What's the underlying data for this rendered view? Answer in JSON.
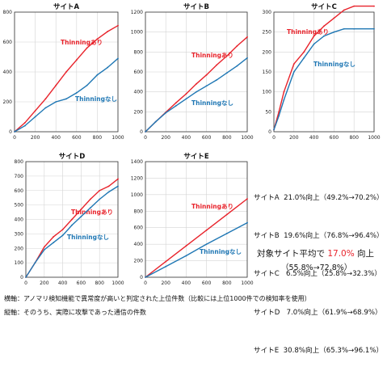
{
  "chart_data": [
    {
      "type": "line",
      "title": "サイトA",
      "xlim": [
        0,
        1000
      ],
      "ylim": [
        0,
        800
      ],
      "xticks": [
        0,
        200,
        400,
        600,
        800,
        1000
      ],
      "yticks": [
        0,
        200,
        400,
        600,
        800
      ],
      "grid": true,
      "series": [
        {
          "name": "Thinningあり",
          "color": "#e8232b",
          "x": [
            0,
            100,
            200,
            300,
            400,
            500,
            600,
            700,
            800,
            900,
            1000
          ],
          "y": [
            0,
            60,
            140,
            220,
            310,
            400,
            480,
            560,
            620,
            670,
            710
          ]
        },
        {
          "name": "Thinningなし",
          "color": "#1f77b4",
          "x": [
            0,
            100,
            200,
            300,
            400,
            500,
            600,
            700,
            800,
            900,
            1000
          ],
          "y": [
            0,
            40,
            100,
            160,
            200,
            220,
            260,
            310,
            380,
            430,
            490
          ]
        }
      ]
    },
    {
      "type": "line",
      "title": "サイトB",
      "xlim": [
        0,
        1000
      ],
      "ylim": [
        0,
        1200
      ],
      "xticks": [
        0,
        200,
        400,
        600,
        800,
        1000
      ],
      "yticks": [
        0,
        200,
        400,
        600,
        800,
        1000,
        1200
      ],
      "grid": true,
      "series": [
        {
          "name": "Thinningあり",
          "color": "#e8232b",
          "x": [
            0,
            100,
            200,
            300,
            400,
            500,
            600,
            700,
            800,
            900,
            1000
          ],
          "y": [
            0,
            100,
            195,
            290,
            380,
            480,
            570,
            670,
            760,
            860,
            950
          ]
        },
        {
          "name": "Thinningなし",
          "color": "#1f77b4",
          "x": [
            0,
            100,
            200,
            300,
            400,
            500,
            600,
            700,
            800,
            900,
            1000
          ],
          "y": [
            0,
            100,
            190,
            260,
            330,
            400,
            460,
            520,
            590,
            660,
            740
          ]
        }
      ]
    },
    {
      "type": "line",
      "title": "サイトC",
      "xlim": [
        0,
        1000
      ],
      "ylim": [
        0,
        300
      ],
      "xticks": [
        0,
        200,
        400,
        600,
        800,
        1000
      ],
      "yticks": [
        0,
        50,
        100,
        150,
        200,
        250,
        300
      ],
      "grid": true,
      "series": [
        {
          "name": "Thinningあり",
          "color": "#e8232b",
          "x": [
            0,
            50,
            100,
            200,
            300,
            400,
            500,
            600,
            700,
            800,
            1000
          ],
          "y": [
            5,
            50,
            100,
            170,
            200,
            240,
            265,
            285,
            305,
            315,
            315
          ]
        },
        {
          "name": "Thinningなし",
          "color": "#1f77b4",
          "x": [
            0,
            50,
            100,
            200,
            300,
            400,
            500,
            600,
            700,
            800,
            1000
          ],
          "y": [
            5,
            40,
            80,
            150,
            185,
            220,
            240,
            250,
            258,
            258,
            258
          ]
        }
      ]
    },
    {
      "type": "line",
      "title": "サイトD",
      "xlim": [
        0,
        1000
      ],
      "ylim": [
        0,
        800
      ],
      "xticks": [
        0,
        200,
        400,
        600,
        800,
        1000
      ],
      "yticks": [
        0,
        100,
        200,
        300,
        400,
        500,
        600,
        700,
        800
      ],
      "grid": true,
      "series": [
        {
          "name": "Thinningあり",
          "color": "#e8232b",
          "x": [
            0,
            100,
            200,
            300,
            400,
            500,
            600,
            700,
            800,
            900,
            1000
          ],
          "y": [
            0,
            100,
            210,
            280,
            330,
            400,
            470,
            540,
            600,
            630,
            680
          ]
        },
        {
          "name": "Thinningなし",
          "color": "#1f77b4",
          "x": [
            0,
            100,
            200,
            300,
            400,
            500,
            600,
            700,
            800,
            900,
            1000
          ],
          "y": [
            0,
            100,
            190,
            240,
            290,
            360,
            420,
            480,
            540,
            590,
            630
          ]
        }
      ]
    },
    {
      "type": "line",
      "title": "サイトE",
      "xlim": [
        0,
        1000
      ],
      "ylim": [
        0,
        1400
      ],
      "xticks": [
        0,
        200,
        400,
        600,
        800,
        1000
      ],
      "yticks": [
        0,
        200,
        400,
        600,
        800,
        1000,
        1200,
        1400
      ],
      "grid": true,
      "series": [
        {
          "name": "Thinningあり",
          "color": "#e8232b",
          "x": [
            0,
            200,
            400,
            600,
            800,
            1000
          ],
          "y": [
            0,
            190,
            380,
            570,
            760,
            950
          ]
        },
        {
          "name": "Thinningなし",
          "color": "#1f77b4",
          "x": [
            0,
            200,
            400,
            600,
            800,
            1000
          ],
          "y": [
            0,
            130,
            260,
            400,
            530,
            660
          ]
        }
      ]
    }
  ],
  "summary": {
    "lines": [
      "サイトA  21.0%向上（49.2%→70.2%）",
      "サイトB  19.6%向上（76.8%→96.4%）",
      "サイトC   6.5%向上（25.8%→32.3%）",
      "サイトD   7.0%向上（61.9%→68.9%）",
      "サイトE  30.8%向上（65.3%→96.1%）"
    ],
    "average_prefix": "対象サイト平均で",
    "average_value": "17.0%",
    "average_suffix": "向上",
    "average_range": "（55.8%→72.8%）"
  },
  "footnotes": [
    "横軸：アノマリ検知機能で異常度が高いと判定された上位件数（比較には上位1000件での検知率を使用）",
    "縦軸：そのうち、実際に攻撃であった通信の件数"
  ]
}
